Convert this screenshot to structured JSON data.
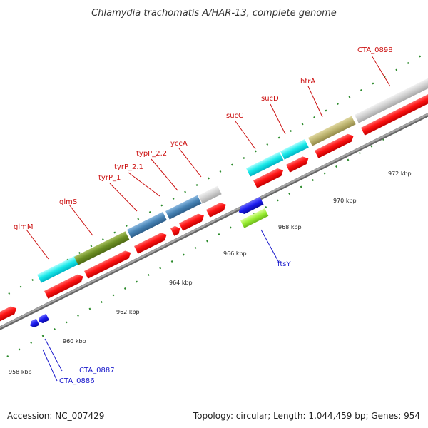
{
  "title": "Chlamydia trachomatis A/HAR-13, complete genome",
  "footer": {
    "accession": "Accession: NC_007429",
    "topology": "Topology: circular; Length: 1,044,459 bp; Genes: 954"
  },
  "colors": {
    "cds_red": "#ff1a1a",
    "gene_blue": "#1a1aee",
    "gene_green": "#99ee33",
    "label_red": "#cc1111",
    "label_blue": "#1a1acc",
    "tick_green": "#2a8a2a",
    "backbone": "#888888"
  },
  "scale": {
    "ticks": [
      "958 kbp",
      "960 kbp",
      "962 kbp",
      "964 kbp",
      "966 kbp",
      "968 kbp",
      "970 kbp",
      "972 kbp"
    ]
  },
  "features": [
    {
      "label": "CTA_0898",
      "color": "#cccccc",
      "track": "outer"
    },
    {
      "label": "htrA",
      "color": "#bcb36e",
      "track": "outer"
    },
    {
      "label": "sucD",
      "color": "#11e6e6",
      "track": "outer"
    },
    {
      "label": "sucC",
      "color": "#11e6e6",
      "track": "outer"
    },
    {
      "label": "yccA",
      "color": "#cccccc",
      "track": "outer"
    },
    {
      "label": "typP_2.2",
      "color": "#4682b4",
      "track": "outer"
    },
    {
      "label": "tyrP_2.1",
      "color": "#4682b4",
      "track": "outer"
    },
    {
      "label": "tyrP_1",
      "color": "#4682b4",
      "track": "outer"
    },
    {
      "label": "glmS",
      "color": "#6b8e23",
      "track": "outer"
    },
    {
      "label": "glmM",
      "color": "#11e6e6",
      "track": "outer"
    },
    {
      "label": "ftsY",
      "color": "#99ee33",
      "track": "inner"
    },
    {
      "label": "CTA_0887",
      "color": "#1a1aee",
      "track": "inner"
    },
    {
      "label": "CTA_0886",
      "color": "#1a1aee",
      "track": "inner"
    }
  ]
}
